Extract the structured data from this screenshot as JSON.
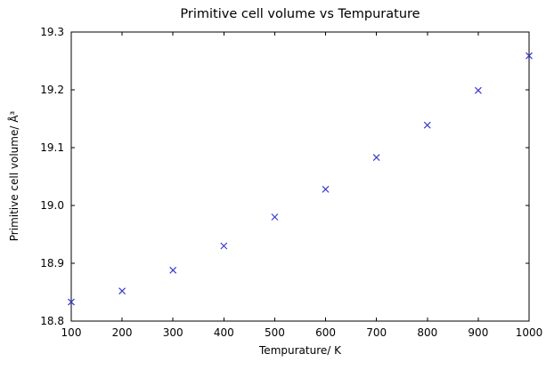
{
  "chart_data": {
    "type": "scatter",
    "title": "Primitive cell volume vs Tempurature",
    "xlabel": "Tempurature/ K",
    "ylabel": "Primitive cell volume/ Å³",
    "x": [
      100,
      200,
      300,
      400,
      500,
      600,
      700,
      800,
      900,
      1000
    ],
    "y": [
      18.833,
      18.852,
      18.888,
      18.93,
      18.98,
      19.028,
      19.083,
      19.139,
      19.199,
      19.259
    ],
    "xlim": [
      100,
      1000
    ],
    "ylim": [
      18.8,
      19.3
    ],
    "xtick_values": [
      100,
      200,
      300,
      400,
      500,
      600,
      700,
      800,
      900,
      1000
    ],
    "xtick_labels": [
      "100",
      "200",
      "300",
      "400",
      "500",
      "600",
      "700",
      "800",
      "900",
      "1000"
    ],
    "ytick_values": [
      18.8,
      18.9,
      19.0,
      19.1,
      19.2,
      19.3
    ],
    "ytick_labels": [
      "18.8",
      "18.9",
      "19.0",
      "19.1",
      "19.2",
      "19.3"
    ],
    "marker": "x",
    "marker_color": "#3a3ad1",
    "axis_color": "#000000",
    "background": "#ffffff",
    "grid": false,
    "legend": null
  }
}
